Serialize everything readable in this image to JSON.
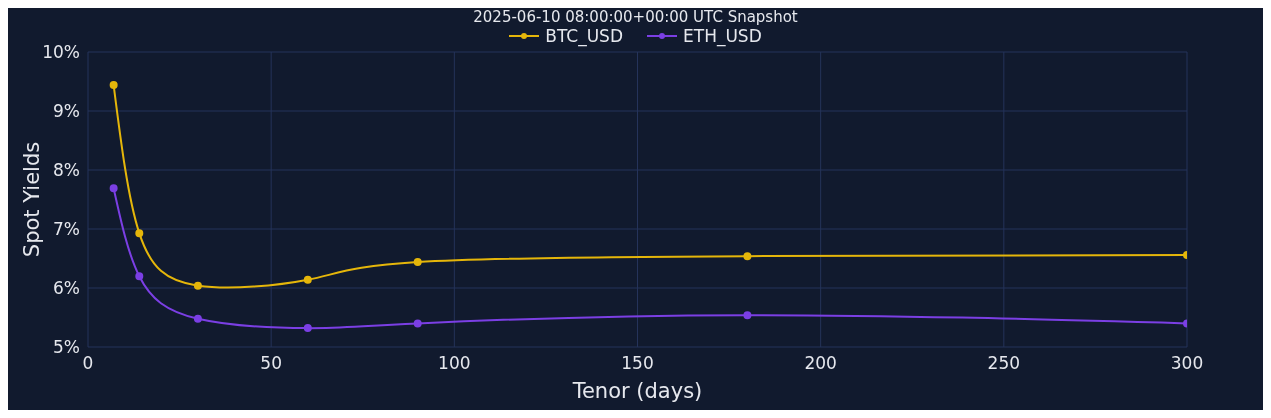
{
  "chart_data": {
    "type": "line",
    "title": "2025-06-10 08:00:00+00:00 UTC Snapshot",
    "xlabel": "Tenor (days)",
    "ylabel": "Spot Yields",
    "x": [
      7,
      14,
      30,
      60,
      90,
      180,
      300
    ],
    "series": [
      {
        "name": "BTC_USD",
        "color": "#e5b60a",
        "values": [
          9.44,
          6.93,
          6.04,
          6.14,
          6.44,
          6.54,
          6.56
        ]
      },
      {
        "name": "ETH_USD",
        "color": "#7b3fe4",
        "values": [
          7.69,
          6.2,
          5.48,
          5.32,
          5.4,
          5.54,
          5.4
        ]
      }
    ],
    "xlim": [
      0,
      300
    ],
    "xticks": [
      0,
      50,
      100,
      150,
      200,
      250,
      300
    ],
    "ylim": [
      5,
      10
    ],
    "yticks": [
      {
        "value": 5,
        "label": "5%"
      },
      {
        "value": 6,
        "label": "6%"
      },
      {
        "value": 7,
        "label": "7%"
      },
      {
        "value": 8,
        "label": "8%"
      },
      {
        "value": 9,
        "label": "9%"
      },
      {
        "value": 10,
        "label": "10%"
      }
    ],
    "grid": true,
    "legend": "top",
    "marker": "circle",
    "line_style": "solid"
  }
}
